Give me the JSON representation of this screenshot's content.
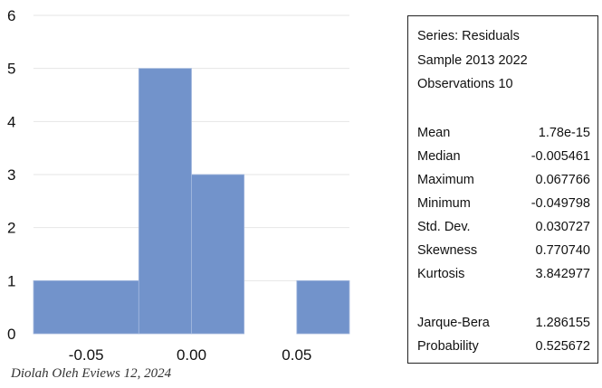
{
  "chart_data": {
    "type": "bar",
    "bins": [
      {
        "from": -0.075,
        "to": -0.025,
        "count": 1
      },
      {
        "from": -0.025,
        "to": 0.0,
        "count": 5
      },
      {
        "from": 0.0,
        "to": 0.025,
        "count": 3
      },
      {
        "from": 0.025,
        "to": 0.05,
        "count": 0
      },
      {
        "from": 0.05,
        "to": 0.075,
        "count": 1
      }
    ],
    "xlim": [
      -0.075,
      0.075
    ],
    "ylim": [
      0,
      6
    ],
    "x_ticks": [
      "-0.05",
      "0.00",
      "0.05"
    ],
    "x_tick_values": [
      -0.05,
      0.0,
      0.05
    ],
    "y_ticks": [
      "0",
      "1",
      "2",
      "3",
      "4",
      "5",
      "6"
    ],
    "y_tick_values": [
      0,
      1,
      2,
      3,
      4,
      5,
      6
    ],
    "grid": "horizontal",
    "bar_color": "#7293CB"
  },
  "caption": "Diolah Oleh Eviews 12, 2024",
  "stats": {
    "header": [
      "Series: Residuals",
      "Sample 2013 2022",
      "Observations 10"
    ],
    "rows1": [
      {
        "label": "Mean",
        "value": "1.78e-15"
      },
      {
        "label": "Median",
        "value": "-0.005461"
      },
      {
        "label": "Maximum",
        "value": "0.067766"
      },
      {
        "label": "Minimum",
        "value": "-0.049798"
      },
      {
        "label": "Std. Dev.",
        "value": "0.030727"
      },
      {
        "label": "Skewness",
        "value": "0.770740"
      },
      {
        "label": "Kurtosis",
        "value": "3.842977"
      }
    ],
    "rows2": [
      {
        "label": "Jarque-Bera",
        "value": "1.286155"
      },
      {
        "label": "Probability",
        "value": "0.525672"
      }
    ]
  }
}
